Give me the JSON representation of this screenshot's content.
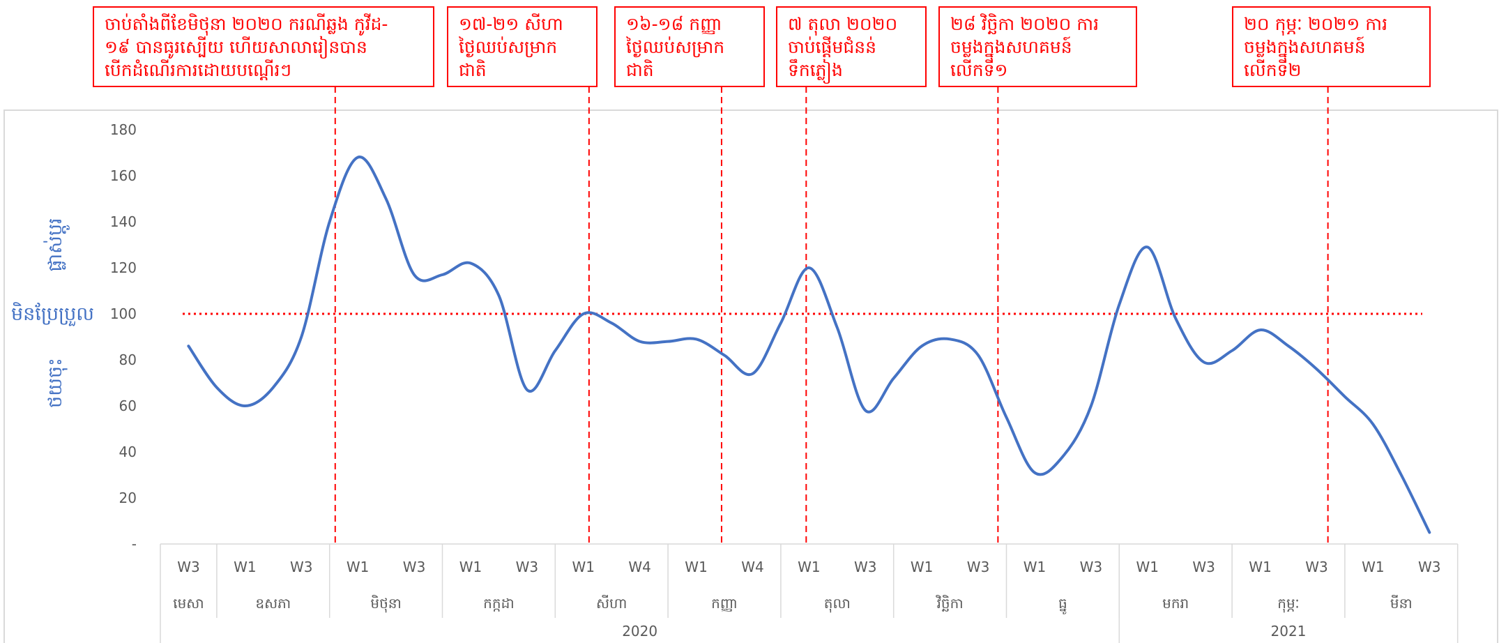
{
  "chart_data": {
    "type": "line",
    "ylim": [
      0,
      180
    ],
    "y_ticks": [
      "-",
      "20",
      "40",
      "60",
      "80",
      "100",
      "120",
      "140",
      "160",
      "180"
    ],
    "y_tick_values": [
      0,
      20,
      40,
      60,
      80,
      100,
      120,
      140,
      160,
      180
    ],
    "grid": false,
    "ylabel": [
      "ផ្លាស់ប្តូរ",
      "មិនប្រែប្រួល",
      "ថយចុះ"
    ],
    "reference_line": {
      "value": 100,
      "style": "dotted"
    },
    "week_ticks": [
      "W3",
      "W1",
      "W3",
      "W1",
      "W3",
      "W1",
      "W3",
      "W1",
      "W4",
      "W1",
      "W4",
      "W1",
      "W3",
      "W1",
      "W3",
      "W1",
      "W3",
      "W1",
      "W3",
      "W1",
      "W3",
      "W1",
      "W3"
    ],
    "months": [
      {
        "label": "មេសា",
        "weeks": 1
      },
      {
        "label": "ឧសភា",
        "weeks": 2
      },
      {
        "label": "មិថុនា",
        "weeks": 2
      },
      {
        "label": "កក្កដា",
        "weeks": 2
      },
      {
        "label": "សីហា",
        "weeks": 2
      },
      {
        "label": "កញ្ញា",
        "weeks": 2
      },
      {
        "label": "តុលា",
        "weeks": 2
      },
      {
        "label": "វិច្ឆិកា",
        "weeks": 2
      },
      {
        "label": "ធ្នូ",
        "weeks": 2
      },
      {
        "label": "មករា",
        "weeks": 2
      },
      {
        "label": "កុម្ភៈ",
        "weeks": 2
      },
      {
        "label": "មីនា",
        "weeks": 2
      }
    ],
    "years": [
      {
        "label": "2020",
        "weeks": 17
      },
      {
        "label": "2021",
        "weeks": 6
      }
    ],
    "series": [
      {
        "color": "#4472c4",
        "points": [
          [
            0,
            86
          ],
          [
            0.5,
            68
          ],
          [
            1,
            60
          ],
          [
            1.5,
            68
          ],
          [
            2,
            90
          ],
          [
            2.5,
            140
          ],
          [
            3,
            168
          ],
          [
            3.5,
            150
          ],
          [
            4,
            117
          ],
          [
            4.5,
            117
          ],
          [
            5,
            122
          ],
          [
            5.5,
            108
          ],
          [
            6,
            67
          ],
          [
            6.5,
            84
          ],
          [
            7,
            100
          ],
          [
            7.5,
            96
          ],
          [
            8,
            88
          ],
          [
            8.5,
            88
          ],
          [
            9,
            89
          ],
          [
            9.5,
            82
          ],
          [
            10,
            74
          ],
          [
            10.5,
            96
          ],
          [
            11,
            120
          ],
          [
            11.5,
            94
          ],
          [
            12,
            58
          ],
          [
            12.5,
            72
          ],
          [
            13,
            86
          ],
          [
            13.5,
            89
          ],
          [
            14,
            82
          ],
          [
            14.5,
            55
          ],
          [
            15,
            31
          ],
          [
            15.5,
            38
          ],
          [
            16,
            60
          ],
          [
            16.5,
            104
          ],
          [
            17,
            129
          ],
          [
            17.5,
            98
          ],
          [
            18,
            79
          ],
          [
            18.5,
            84
          ],
          [
            19,
            93
          ],
          [
            19.5,
            86
          ],
          [
            20,
            76
          ],
          [
            20.5,
            64
          ],
          [
            21,
            52
          ],
          [
            21.5,
            30
          ],
          [
            22,
            5
          ]
        ]
      }
    ],
    "annotations": [
      {
        "x": 2.6,
        "lines": [
          "ចាប់តាំងពីខែមិថុនា ២០២០ ករណីឆ្លង កូវីដ-",
          "១៩ បានធូរស្បើយ ហើយសាលារៀនបាន",
          "បើកដំណើរការដោយបណ្តើរៗ"
        ]
      },
      {
        "x": 7.1,
        "lines": [
          "១៧-២១ សីហា",
          "ថ្ងៃឈប់សម្រាក",
          "ជាតិ"
        ]
      },
      {
        "x": 9.45,
        "lines": [
          "១៦-១៨ កញ្ញា",
          "ថ្ងៃឈប់សម្រាក",
          "ជាតិ"
        ]
      },
      {
        "x": 10.95,
        "lines": [
          "៧ តុលា ២០២០",
          "ចាប់ផ្តើមជំនន់",
          "ទឹកភ្លៀង"
        ]
      },
      {
        "x": 14.35,
        "lines": [
          "២៨ វិច្ឆិកា ២០២០ ការ",
          "ចម្លងក្នុងសហគមន៍",
          "លើកទី១"
        ]
      },
      {
        "x": 20.2,
        "lines": [
          "២០ កុម្ភៈ ២០២១ ការ",
          "ចម្លងក្នុងសហគមន៍",
          "លើកទី២"
        ]
      }
    ]
  }
}
